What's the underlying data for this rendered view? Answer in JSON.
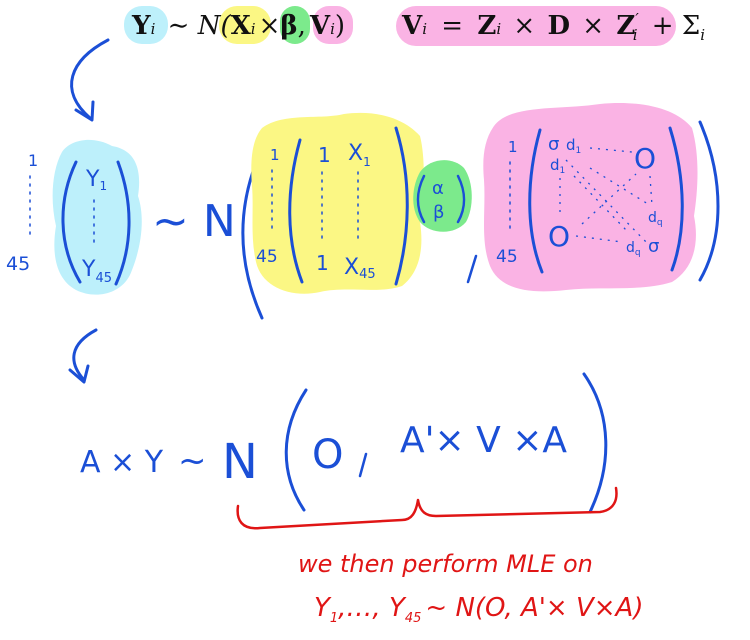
{
  "colors": {
    "cyan": "#bdf0fb",
    "yellow": "#fbf784",
    "green": "#7cea8c",
    "pink": "#fab3e4",
    "ink_blue": "#1b4fd6",
    "ink_red": "#e01515"
  },
  "model_formula": {
    "Y": "Y",
    "Y_sub": "i",
    "sim": "∼ N(",
    "X": "X",
    "X_sub": "i",
    "times": "×",
    "beta": "β",
    "comma": ",",
    "V": "V",
    "V_sub": "i",
    "close": ")"
  },
  "variance_formula": {
    "V": "V",
    "V_sub": "i",
    "eq": "=",
    "Z": "Z",
    "Z_sub": "i",
    "times1": "×",
    "D": "D",
    "times2": "×",
    "Zp": "Z",
    "Zp_sup": "′",
    "Zp_sub": "i",
    "plus": "+ Σ",
    "Sigma_sub": "i"
  },
  "y_vector": {
    "index_top": "1",
    "index_bottom": "45",
    "entry_top": "Y",
    "entry_top_sub": "1",
    "entry_bottom": "Y",
    "entry_bottom_sub": "45"
  },
  "normal_symbol": "~ N",
  "design_matrix": {
    "index_top": "1",
    "index_bottom": "45",
    "col1_top": "1",
    "col1_bottom": "1",
    "col2_top": "X",
    "col2_top_sub": "1",
    "col2_bottom": "X",
    "col2_bottom_sub": "45"
  },
  "coef_vector": {
    "alpha": "α",
    "beta": "β"
  },
  "cov_matrix": {
    "index_top": "1",
    "index_bottom": "45",
    "sigma_top": "σ",
    "d_top": "d",
    "d_top_sub": "1",
    "d_left": "d",
    "d_left_sub": "1",
    "zero_top_right": "O",
    "d_right": "d",
    "d_right_sub": "q",
    "zero_bottom_left": "O",
    "d_bottom": "d",
    "d_bottom_sub": "q",
    "sigma_bottom": "σ"
  },
  "transformed": {
    "lhs": "A × Y",
    "sim": "~",
    "N": "N",
    "zero": "O",
    "comma": ",",
    "rhs": "A'× V ×A"
  },
  "note": {
    "line1": "we then perform MLE on",
    "line2_y": "Y",
    "line2_sub1": "1",
    "line2_mid": ",…, Y",
    "line2_sub2": "45",
    "line2_rest": "~ N(O, A'× V×A)"
  }
}
